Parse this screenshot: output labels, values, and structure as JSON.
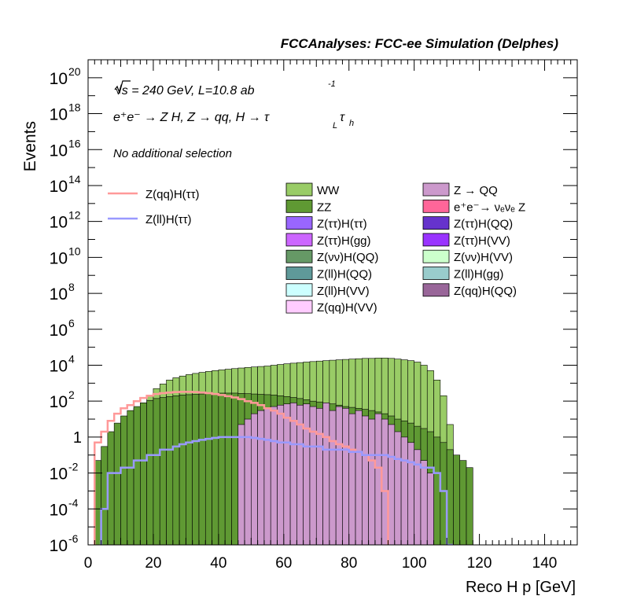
{
  "header": {
    "title": "FCCAnalyses: FCC-ee Simulation (Delphes)"
  },
  "annotations": {
    "energy": "√s = 240 GeV, L=10.8 ab",
    "lumi_exp": "-1",
    "process": "e⁺e⁻ → Z H, Z → qq, H → τ",
    "sub_L": "L",
    "tau2": "τ",
    "sub_h": "h",
    "selection": "No additional selection"
  },
  "colors": {
    "WW": "#99cc66",
    "ZZ": "#5f9933",
    "Z_QQ": "#cc99cc",
    "eeZ": "#ff6699",
    "Ztautau_Htautau": "#9966ff",
    "Ztautau_HQQ": "#6633cc",
    "Ztautau_Hgg": "#cc66ff",
    "Ztautau_HVV": "#9933ff",
    "Znunu_HQQ": "#669966",
    "Znunu_HVV": "#ccffcc",
    "Zll_HQQ": "#5f9999",
    "Zll_Hgg": "#99cccc",
    "Zll_HVV": "#ccffff",
    "Zqq_HQQ": "#996699",
    "Zqq_HVV": "#ffccff",
    "sig_qq": "#ff9999",
    "sig_ll": "#9999ff"
  },
  "chart_data": {
    "type": "bar",
    "title": "",
    "xlabel": "Reco H p [GeV]",
    "ylabel": "Events",
    "xlim": [
      0,
      150
    ],
    "ylim": [
      1e-06,
      1e+21
    ],
    "log_y": true,
    "x_ticks": [
      "0",
      "20",
      "40",
      "60",
      "80",
      "100",
      "120",
      "140"
    ],
    "y_ticks": [
      {
        "base": "10",
        "exp": "-6"
      },
      {
        "base": "10",
        "exp": "-4"
      },
      {
        "base": "10",
        "exp": "-2"
      },
      {
        "base": "1",
        "exp": ""
      },
      {
        "base": "10",
        "exp": "2"
      },
      {
        "base": "10",
        "exp": "4"
      },
      {
        "base": "10",
        "exp": "6"
      },
      {
        "base": "10",
        "exp": "8"
      },
      {
        "base": "10",
        "exp": "10"
      },
      {
        "base": "10",
        "exp": "12"
      },
      {
        "base": "10",
        "exp": "14"
      },
      {
        "base": "10",
        "exp": "16"
      },
      {
        "base": "10",
        "exp": "18"
      },
      {
        "base": "10",
        "exp": "20"
      }
    ],
    "legend_left": [
      {
        "label": "Z(qq)H(ττ)",
        "color": "#ff9999"
      },
      {
        "label": "Z(ll)H(ττ)",
        "color": "#9999ff"
      }
    ],
    "legend_col1": [
      {
        "label": "WW",
        "color": "#99cc66"
      },
      {
        "label": "ZZ",
        "color": "#5f9933"
      },
      {
        "label": "Z(ττ)H(ττ)",
        "color": "#9966ff"
      },
      {
        "label": "Z(ττ)H(gg)",
        "color": "#cc66ff"
      },
      {
        "label": "Z(νν)H(QQ)",
        "color": "#669966"
      },
      {
        "label": "Z(ll)H(QQ)",
        "color": "#5f9999"
      },
      {
        "label": "Z(ll)H(VV)",
        "color": "#ccffff"
      },
      {
        "label": "Z(qq)H(VV)",
        "color": "#ffccff"
      }
    ],
    "legend_col2": [
      {
        "label": "Z → QQ",
        "color": "#cc99cc"
      },
      {
        "label": "e⁺e⁻→ νₑνₑ Z",
        "color": "#ff6699"
      },
      {
        "label": "Z(ττ)H(QQ)",
        "color": "#6633cc"
      },
      {
        "label": "Z(ττ)H(VV)",
        "color": "#9933ff"
      },
      {
        "label": "Z(νν)H(VV)",
        "color": "#ccffcc"
      },
      {
        "label": "Z(ll)H(gg)",
        "color": "#99cccc"
      },
      {
        "label": "Z(qq)H(QQ)",
        "color": "#996699"
      }
    ],
    "bin_width": 2,
    "series": [
      {
        "name": "WW",
        "x": [
          6,
          8,
          10,
          12,
          14,
          16,
          18,
          20,
          22,
          24,
          26,
          28,
          30,
          32,
          34,
          36,
          38,
          40,
          42,
          44,
          46,
          48,
          50,
          52,
          54,
          56,
          58,
          60,
          62,
          64,
          66,
          68,
          70,
          72,
          74,
          76,
          78,
          80,
          82,
          84,
          86,
          88,
          90,
          92,
          94,
          96,
          98,
          100,
          102,
          104,
          106,
          108,
          110
        ],
        "values": [
          0.3,
          1,
          5,
          15,
          40,
          80,
          200,
          500,
          900,
          1500,
          2000,
          2500,
          3000,
          3500,
          4000,
          4500,
          5000,
          5500,
          6000,
          6500,
          7000,
          7500,
          8000,
          8500,
          9000,
          10000,
          11000,
          12000,
          13000,
          14000,
          15000,
          16000,
          17000,
          18000,
          19000,
          20000,
          21000,
          22000,
          23000,
          24000,
          24000,
          25000,
          25000,
          24000,
          22000,
          20000,
          18000,
          15000,
          10000,
          5000,
          1500,
          200,
          5
        ]
      },
      {
        "name": "ZZ",
        "x": [
          2,
          4,
          6,
          8,
          10,
          12,
          14,
          16,
          18,
          20,
          22,
          24,
          26,
          28,
          30,
          32,
          34,
          36,
          38,
          40,
          42,
          44,
          46,
          48,
          50,
          52,
          54,
          56,
          58,
          60,
          62,
          64,
          66,
          68,
          70,
          72,
          74,
          76,
          78,
          80,
          82,
          84,
          86,
          88,
          90,
          92,
          94,
          96,
          98,
          100,
          102,
          104,
          106,
          108,
          110,
          112,
          114,
          116
        ],
        "values": [
          0.05,
          0.3,
          2,
          6,
          15,
          30,
          50,
          80,
          110,
          140,
          160,
          180,
          200,
          220,
          230,
          240,
          250,
          260,
          270,
          280,
          280,
          280,
          270,
          260,
          250,
          240,
          230,
          220,
          200,
          180,
          160,
          140,
          120,
          100,
          90,
          80,
          70,
          60,
          50,
          45,
          40,
          35,
          30,
          25,
          20,
          15,
          10,
          8,
          6,
          4,
          3,
          2,
          1,
          0.5,
          0.2,
          0.1,
          0.05,
          0.02
        ]
      },
      {
        "name": "Z → QQ",
        "x": [
          46,
          48,
          50,
          52,
          54,
          56,
          58,
          60,
          62,
          64,
          66,
          68,
          70,
          72,
          74,
          76,
          78,
          80,
          82,
          84,
          86,
          88,
          90,
          92,
          94,
          96,
          98,
          100,
          102,
          104
        ],
        "values": [
          5,
          10,
          20,
          30,
          40,
          50,
          60,
          70,
          80,
          60,
          70,
          50,
          40,
          80,
          30,
          50,
          40,
          20,
          30,
          15,
          10,
          20,
          10,
          5,
          2,
          1,
          0.5,
          0.2,
          0.05,
          0.01
        ]
      }
    ],
    "signals": [
      {
        "name": "Z(qq)H(ττ)",
        "x": [
          2,
          4,
          6,
          8,
          10,
          12,
          14,
          16,
          18,
          20,
          22,
          24,
          26,
          28,
          30,
          32,
          34,
          36,
          38,
          40,
          42,
          44,
          46,
          48,
          50,
          52,
          54,
          56,
          58,
          60,
          62,
          64,
          66,
          68,
          70,
          72,
          74,
          76,
          78,
          80,
          82,
          84,
          86,
          88,
          90
        ],
        "values": [
          0.5,
          2,
          8,
          20,
          40,
          60,
          100,
          150,
          200,
          250,
          280,
          300,
          320,
          330,
          330,
          320,
          300,
          280,
          250,
          220,
          190,
          160,
          130,
          100,
          80,
          60,
          40,
          30,
          20,
          12,
          8,
          5,
          3,
          2,
          1.5,
          1,
          0.6,
          0.4,
          0.3,
          0.2,
          0.15,
          0.1,
          0.05,
          0.02,
          0.001
        ]
      },
      {
        "name": "Z(ll)H(ττ)",
        "x": [
          4,
          6,
          8,
          10,
          12,
          14,
          16,
          18,
          20,
          22,
          24,
          26,
          28,
          30,
          32,
          34,
          36,
          38,
          40,
          42,
          44,
          46,
          48,
          50,
          52,
          54,
          56,
          58,
          60,
          62,
          64,
          66,
          68,
          70,
          72,
          74,
          76,
          78,
          80,
          82,
          84,
          86,
          88,
          90,
          92,
          94,
          96,
          98,
          100,
          102,
          104,
          106,
          108,
          110
        ],
        "values": [
          0.0001,
          0.01,
          0.01,
          0.02,
          0.02,
          0.05,
          0.05,
          0.1,
          0.1,
          0.2,
          0.2,
          0.3,
          0.4,
          0.5,
          0.6,
          0.7,
          0.8,
          0.9,
          1,
          1,
          1,
          1,
          1,
          0.9,
          0.8,
          0.7,
          0.6,
          0.5,
          0.5,
          0.4,
          0.4,
          0.3,
          0.3,
          0.3,
          0.2,
          0.2,
          0.2,
          0.2,
          0.15,
          0.15,
          0.1,
          0.1,
          0.1,
          0.1,
          0.08,
          0.06,
          0.05,
          0.04,
          0.03,
          0.02,
          0.02,
          0.01,
          0.001,
          1e-06
        ]
      }
    ]
  }
}
